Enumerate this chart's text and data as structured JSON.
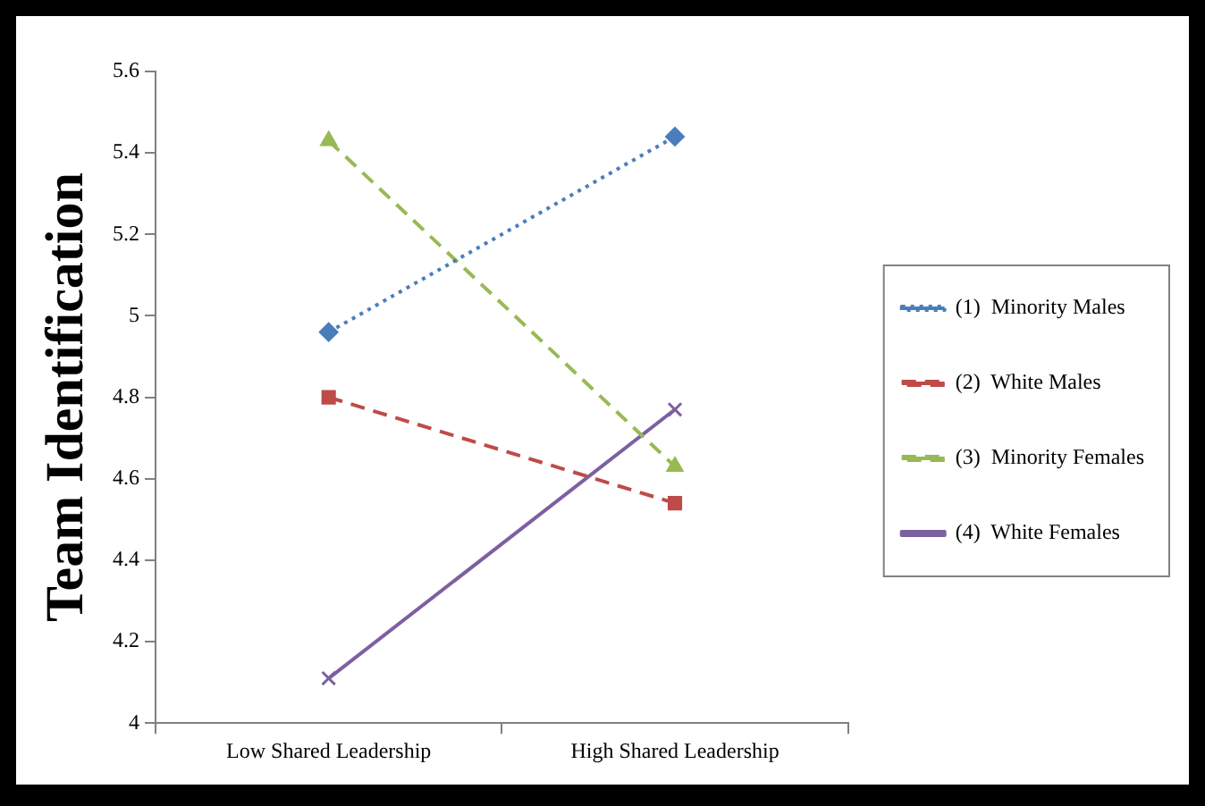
{
  "chart_data": {
    "type": "line",
    "ylabel": "Team Identification",
    "categories": [
      "Low Shared Leadership",
      "High Shared Leadership"
    ],
    "ylim": [
      4,
      5.6
    ],
    "yticks": [
      4,
      4.2,
      4.4,
      4.6,
      4.8,
      5,
      5.2,
      5.4,
      5.6
    ],
    "grid": false,
    "legend": "right",
    "series": [
      {
        "name": "(1)  Minority Males",
        "color": "#4a7ebb",
        "marker": "diamond",
        "line_style": "dotted",
        "values": [
          4.96,
          5.44
        ]
      },
      {
        "name": "(2)  White Males",
        "color": "#be4b48",
        "marker": "square",
        "line_style": "dashed",
        "values": [
          4.8,
          4.54
        ]
      },
      {
        "name": "(3)  Minority Females",
        "color": "#98b954",
        "marker": "triangle",
        "line_style": "dashed",
        "values": [
          5.43,
          4.63
        ]
      },
      {
        "name": "(4)  White Females",
        "color": "#7d60a0",
        "marker": "cross",
        "line_style": "solid",
        "values": [
          4.11,
          4.77
        ]
      }
    ]
  }
}
